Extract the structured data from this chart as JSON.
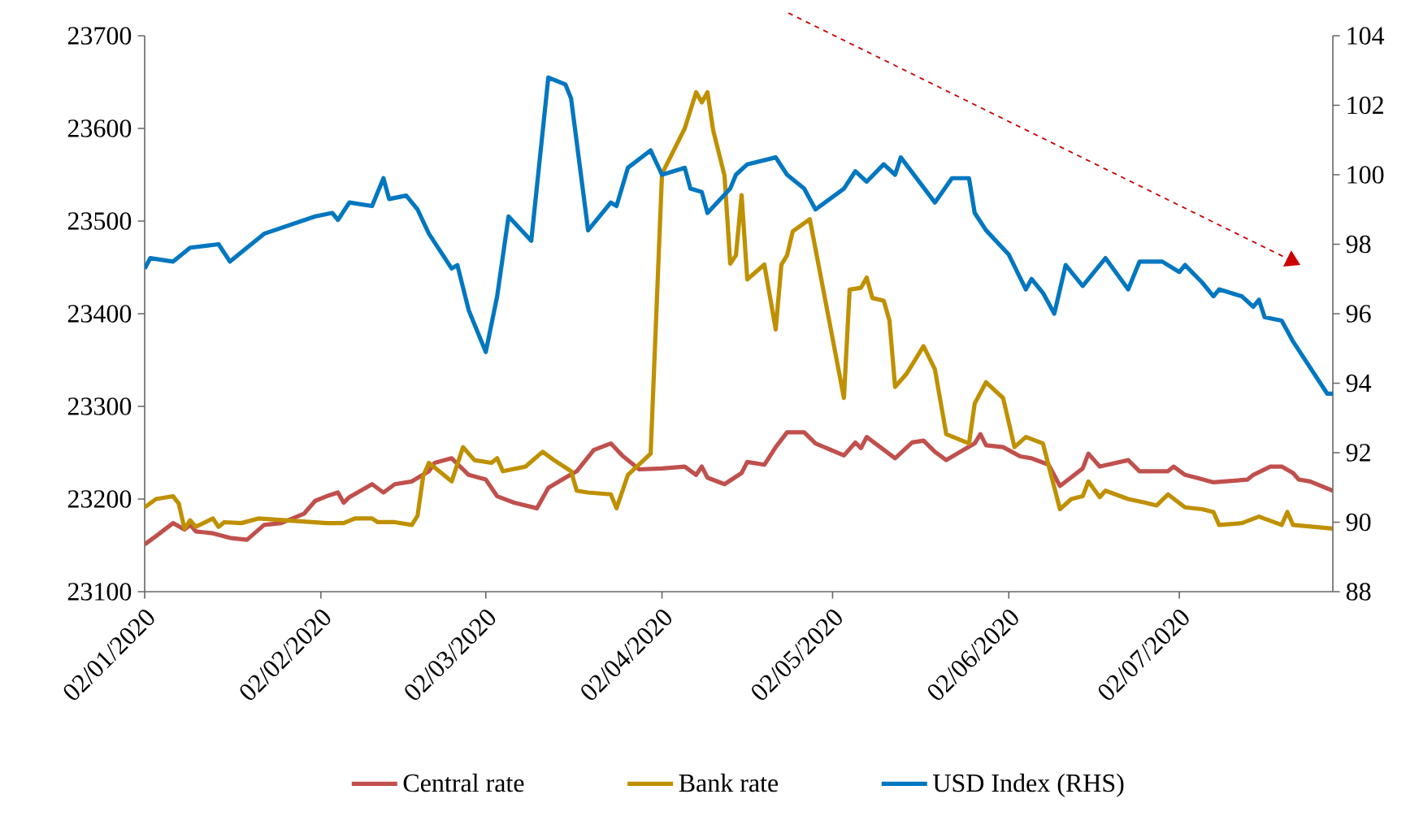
{
  "chart_data": {
    "type": "line",
    "xlim": [
      "2020-01-02",
      "2020-07-29"
    ],
    "xticks": [
      {
        "value": "2020-01-02",
        "label": "02/01/2020"
      },
      {
        "value": "2020-02-02",
        "label": "02/02/2020"
      },
      {
        "value": "2020-03-02",
        "label": "02/03/2020"
      },
      {
        "value": "2020-04-02",
        "label": "02/04/2020"
      },
      {
        "value": "2020-05-02",
        "label": "02/05/2020"
      },
      {
        "value": "2020-06-02",
        "label": "02/06/2020"
      },
      {
        "value": "2020-07-02",
        "label": "02/07/2020"
      }
    ],
    "ylim": [
      23100,
      23700
    ],
    "yticks": [
      23100,
      23200,
      23300,
      23400,
      23500,
      23600,
      23700
    ],
    "y2lim": [
      88,
      104
    ],
    "y2ticks": [
      88,
      90,
      92,
      94,
      96,
      98,
      100,
      102,
      104
    ],
    "legend": "bottom",
    "series": [
      {
        "name": "Central rate",
        "color": "#c0504d",
        "x": [
          "2020-01-02",
          "2020-01-04",
          "2020-01-07",
          "2020-01-09",
          "2020-01-10",
          "2020-01-11",
          "2020-01-14",
          "2020-01-17",
          "2020-01-20",
          "2020-01-23",
          "2020-01-26",
          "2020-01-30",
          "2020-02-01",
          "2020-02-03",
          "2020-02-05",
          "2020-02-06",
          "2020-02-07",
          "2020-02-11",
          "2020-02-13",
          "2020-02-15",
          "2020-02-18",
          "2020-02-21",
          "2020-02-22",
          "2020-02-25",
          "2020-02-28",
          "2020-03-02",
          "2020-03-04",
          "2020-03-07",
          "2020-03-11",
          "2020-03-13",
          "2020-03-16",
          "2020-03-18",
          "2020-03-21",
          "2020-03-24",
          "2020-03-26",
          "2020-03-29",
          "2020-04-02",
          "2020-04-06",
          "2020-04-08",
          "2020-04-09",
          "2020-04-10",
          "2020-04-13",
          "2020-04-16",
          "2020-04-17",
          "2020-04-20",
          "2020-04-22",
          "2020-04-24",
          "2020-04-27",
          "2020-04-29",
          "2020-05-04",
          "2020-05-06",
          "2020-05-07",
          "2020-05-08",
          "2020-05-13",
          "2020-05-16",
          "2020-05-18",
          "2020-05-20",
          "2020-05-22",
          "2020-05-27",
          "2020-05-28",
          "2020-05-29",
          "2020-06-01",
          "2020-06-04",
          "2020-06-06",
          "2020-06-09",
          "2020-06-11",
          "2020-06-15",
          "2020-06-16",
          "2020-06-18",
          "2020-06-23",
          "2020-06-25",
          "2020-06-30",
          "2020-07-01",
          "2020-07-03",
          "2020-07-05",
          "2020-07-08",
          "2020-07-14",
          "2020-07-15",
          "2020-07-18",
          "2020-07-20",
          "2020-07-22",
          "2020-07-23",
          "2020-07-25",
          "2020-07-29"
        ],
        "values": [
          23151,
          23160,
          23174,
          23167,
          23172,
          23165,
          23163,
          23158,
          23156,
          23172,
          23174,
          23184,
          23198,
          23203,
          23207,
          23196,
          23202,
          23216,
          23207,
          23216,
          23219,
          23230,
          23239,
          23244,
          23226,
          23221,
          23203,
          23196,
          23190,
          23212,
          23223,
          23230,
          23253,
          23260,
          23247,
          23232,
          23233,
          23235,
          23226,
          23235,
          23223,
          23216,
          23228,
          23240,
          23237,
          23256,
          23272,
          23272,
          23260,
          23247,
          23261,
          23255,
          23267,
          23244,
          23261,
          23263,
          23251,
          23242,
          23260,
          23270,
          23258,
          23256,
          23246,
          23244,
          23237,
          23214,
          23233,
          23249,
          23235,
          23242,
          23230,
          23230,
          23235,
          23226,
          23223,
          23218,
          23221,
          23226,
          23235,
          23235,
          23228,
          23221,
          23219,
          23209
        ]
      },
      {
        "name": "Bank rate",
        "color": "#bf9000",
        "x": [
          "2020-01-02",
          "2020-01-04",
          "2020-01-07",
          "2020-01-08",
          "2020-01-09",
          "2020-01-10",
          "2020-01-11",
          "2020-01-14",
          "2020-01-15",
          "2020-01-16",
          "2020-01-19",
          "2020-01-22",
          "2020-02-03",
          "2020-02-06",
          "2020-02-08",
          "2020-02-11",
          "2020-02-12",
          "2020-02-15",
          "2020-02-18",
          "2020-02-19",
          "2020-02-20",
          "2020-02-21",
          "2020-02-25",
          "2020-02-27",
          "2020-02-29",
          "2020-03-03",
          "2020-03-04",
          "2020-03-05",
          "2020-03-09",
          "2020-03-12",
          "2020-03-14",
          "2020-03-17",
          "2020-03-18",
          "2020-03-20",
          "2020-03-24",
          "2020-03-25",
          "2020-03-27",
          "2020-03-31",
          "2020-04-02",
          "2020-04-06",
          "2020-04-08",
          "2020-04-09",
          "2020-04-10",
          "2020-04-11",
          "2020-04-13",
          "2020-04-14",
          "2020-04-15",
          "2020-04-16",
          "2020-04-17",
          "2020-04-20",
          "2020-04-22",
          "2020-04-23",
          "2020-04-24",
          "2020-04-25",
          "2020-04-28",
          "2020-05-04",
          "2020-05-05",
          "2020-05-07",
          "2020-05-08",
          "2020-05-09",
          "2020-05-11",
          "2020-05-12",
          "2020-05-13",
          "2020-05-15",
          "2020-05-18",
          "2020-05-20",
          "2020-05-22",
          "2020-05-26",
          "2020-05-27",
          "2020-05-29",
          "2020-06-01",
          "2020-06-03",
          "2020-06-05",
          "2020-06-08",
          "2020-06-11",
          "2020-06-13",
          "2020-06-15",
          "2020-06-16",
          "2020-06-18",
          "2020-06-19",
          "2020-06-23",
          "2020-06-26",
          "2020-06-28",
          "2020-06-30",
          "2020-07-03",
          "2020-07-06",
          "2020-07-08",
          "2020-07-09",
          "2020-07-13",
          "2020-07-16",
          "2020-07-20",
          "2020-07-21",
          "2020-07-22",
          "2020-07-29"
        ],
        "values": [
          23191,
          23200,
          23203,
          23195,
          23168,
          23177,
          23170,
          23179,
          23170,
          23175,
          23174,
          23179,
          23174,
          23174,
          23179,
          23179,
          23175,
          23175,
          23172,
          23182,
          23225,
          23239,
          23219,
          23256,
          23242,
          23239,
          23244,
          23230,
          23235,
          23251,
          23242,
          23230,
          23209,
          23207,
          23205,
          23190,
          23226,
          23249,
          23551,
          23600,
          23639,
          23628,
          23639,
          23598,
          23549,
          23454,
          23463,
          23528,
          23437,
          23453,
          23383,
          23453,
          23463,
          23489,
          23502,
          23309,
          23426,
          23428,
          23439,
          23417,
          23414,
          23393,
          23321,
          23335,
          23365,
          23340,
          23270,
          23260,
          23303,
          23326,
          23309,
          23256,
          23267,
          23260,
          23189,
          23200,
          23203,
          23219,
          23202,
          23209,
          23200,
          23196,
          23193,
          23205,
          23191,
          23189,
          23186,
          23172,
          23174,
          23181,
          23172,
          23186,
          23172,
          23168
        ]
      },
      {
        "name": "USD Index (RHS)",
        "color": "#0077c0",
        "axis": "y2",
        "x": [
          "2020-01-02",
          "2020-01-03",
          "2020-01-07",
          "2020-01-10",
          "2020-01-15",
          "2020-01-17",
          "2020-01-23",
          "2020-02-01",
          "2020-02-04",
          "2020-02-05",
          "2020-02-07",
          "2020-02-11",
          "2020-02-13",
          "2020-02-14",
          "2020-02-17",
          "2020-02-19",
          "2020-02-21",
          "2020-02-25",
          "2020-02-26",
          "2020-02-28",
          "2020-03-01",
          "2020-03-02",
          "2020-03-04",
          "2020-03-06",
          "2020-03-10",
          "2020-03-13",
          "2020-03-16",
          "2020-03-17",
          "2020-03-20",
          "2020-03-24",
          "2020-03-25",
          "2020-03-27",
          "2020-03-31",
          "2020-04-02",
          "2020-04-06",
          "2020-04-07",
          "2020-04-09",
          "2020-04-10",
          "2020-04-14",
          "2020-04-15",
          "2020-04-17",
          "2020-04-22",
          "2020-04-24",
          "2020-04-27",
          "2020-04-29",
          "2020-05-04",
          "2020-05-06",
          "2020-05-08",
          "2020-05-11",
          "2020-05-13",
          "2020-05-14",
          "2020-05-20",
          "2020-05-23",
          "2020-05-26",
          "2020-05-27",
          "2020-05-29",
          "2020-06-02",
          "2020-06-05",
          "2020-06-06",
          "2020-06-08",
          "2020-06-10",
          "2020-06-12",
          "2020-06-15",
          "2020-06-19",
          "2020-06-23",
          "2020-06-25",
          "2020-06-29",
          "2020-07-02",
          "2020-07-03",
          "2020-07-06",
          "2020-07-08",
          "2020-07-09",
          "2020-07-13",
          "2020-07-15",
          "2020-07-16",
          "2020-07-17",
          "2020-07-20",
          "2020-07-22",
          "2020-07-28",
          "2020-07-29"
        ],
        "values": [
          97.3,
          97.6,
          97.5,
          97.9,
          98.0,
          97.5,
          98.3,
          98.8,
          98.9,
          98.7,
          99.2,
          99.1,
          99.9,
          99.3,
          99.4,
          99.0,
          98.3,
          97.3,
          97.4,
          96.1,
          95.3,
          94.9,
          96.5,
          98.8,
          98.1,
          102.8,
          102.6,
          102.2,
          98.4,
          99.2,
          99.1,
          100.2,
          100.7,
          100.0,
          100.2,
          99.6,
          99.5,
          98.9,
          99.6,
          100.0,
          100.3,
          100.5,
          100.0,
          99.6,
          99.0,
          99.6,
          100.1,
          99.8,
          100.3,
          100.0,
          100.5,
          99.2,
          99.9,
          99.9,
          98.9,
          98.4,
          97.7,
          96.7,
          97.0,
          96.6,
          96.0,
          97.4,
          96.8,
          97.6,
          96.7,
          97.5,
          97.5,
          97.2,
          97.4,
          96.9,
          96.5,
          96.7,
          96.5,
          96.2,
          96.4,
          95.9,
          95.8,
          95.2,
          93.7,
          93.7
        ]
      }
    ]
  }
}
